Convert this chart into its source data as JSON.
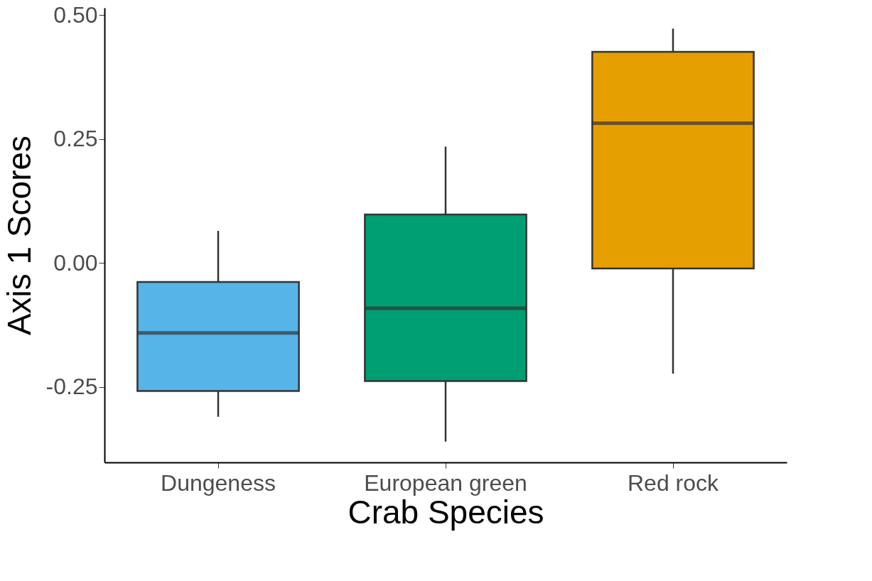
{
  "chart_data": {
    "type": "box",
    "xlabel": "Crab Species",
    "ylabel": "Axis 1 Scores",
    "categories": [
      "Dungeness",
      "European green",
      "Red rock"
    ],
    "colors": [
      "#56b4e9",
      "#009e73",
      "#e69f00"
    ],
    "boxes": [
      {
        "low": -0.31,
        "q1": -0.258,
        "median": -0.141,
        "q3": -0.038,
        "high": 0.065
      },
      {
        "low": -0.36,
        "q1": -0.238,
        "median": -0.091,
        "q3": 0.098,
        "high": 0.235
      },
      {
        "low": -0.223,
        "q1": -0.011,
        "median": 0.282,
        "q3": 0.426,
        "high": 0.473
      }
    ],
    "ylim": [
      -0.402,
      0.515
    ],
    "yticks": [
      {
        "value": -0.25,
        "label": "-0.25"
      },
      {
        "value": 0,
        "label": "0.00"
      },
      {
        "value": 0.25,
        "label": "0.25"
      },
      {
        "value": 0.5,
        "label": "0.50"
      }
    ],
    "grid": false,
    "legend": false
  }
}
